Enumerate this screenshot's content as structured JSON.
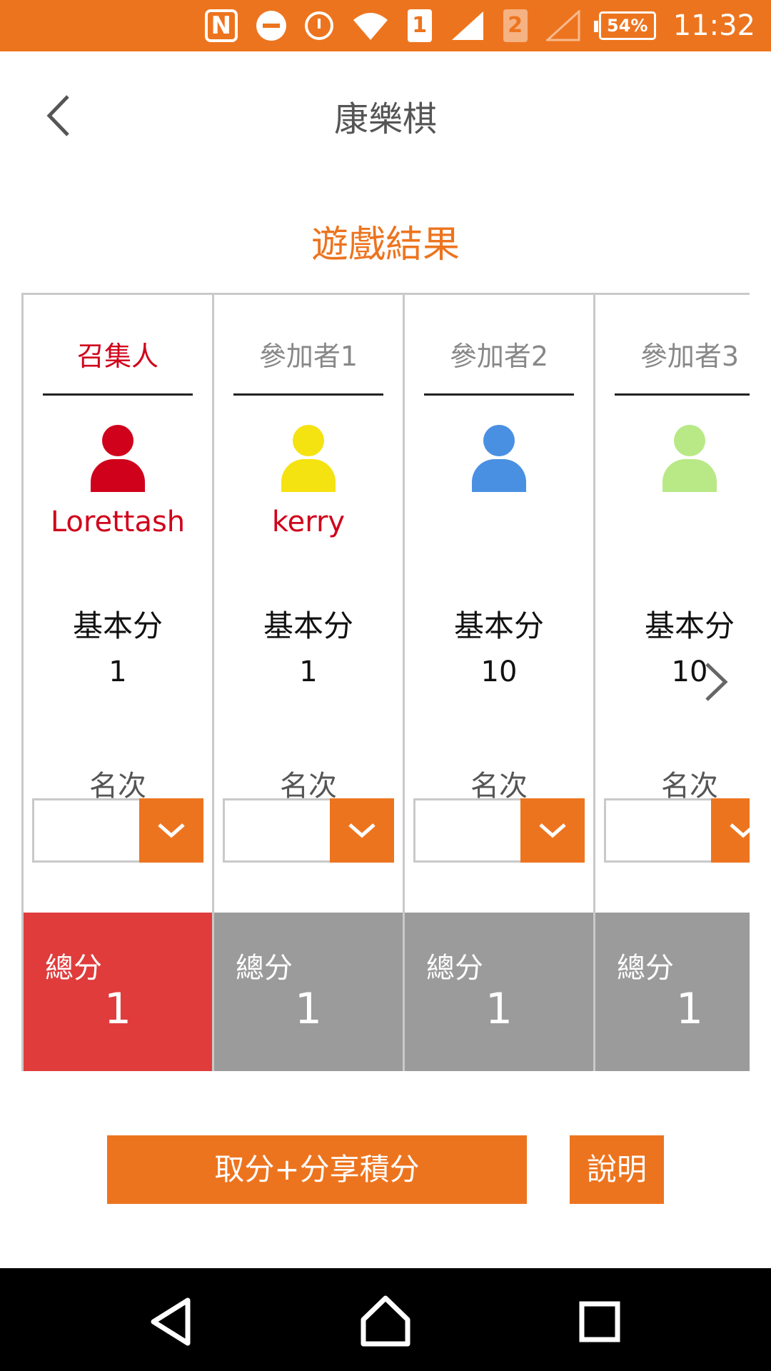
{
  "status_bar": {
    "nfc_label": "N",
    "sim1_label": "1",
    "sim2_label": "2",
    "battery": "54%",
    "time": "11:32",
    "icons": [
      "nfc-icon",
      "do-not-disturb-icon",
      "alarm-icon",
      "wifi-icon",
      "sim1-icon",
      "signal-icon",
      "sim2-icon",
      "no-signal-icon",
      "battery-icon"
    ]
  },
  "header": {
    "title": "康樂棋",
    "back_icon": "chevron-left-icon"
  },
  "result_title": "遊戲結果",
  "labels": {
    "base_score": "基本分",
    "rank": "名次",
    "total": "總分"
  },
  "players": [
    {
      "role": "召集人",
      "name": "Lorettash",
      "avatar_color": "#d0021b",
      "base_score": "1",
      "rank": "",
      "total": "1",
      "is_host": true
    },
    {
      "role": "參加者1",
      "name": "kerry",
      "avatar_color": "#f5e211",
      "base_score": "1",
      "rank": "",
      "total": "1",
      "is_host": false
    },
    {
      "role": "參加者2",
      "name": "",
      "avatar_color": "#4a90e2",
      "base_score": "10",
      "rank": "",
      "total": "1",
      "is_host": false
    },
    {
      "role": "參加者3",
      "name": "",
      "avatar_color": "#b8e986",
      "base_score": "10",
      "rank": "",
      "total": "1",
      "is_host": false
    }
  ],
  "buttons": {
    "share": "取分+分享積分",
    "help": "說明"
  },
  "colors": {
    "accent": "#ed741e",
    "host_red": "#e03c3c",
    "total_gray": "#9b9b9b"
  }
}
